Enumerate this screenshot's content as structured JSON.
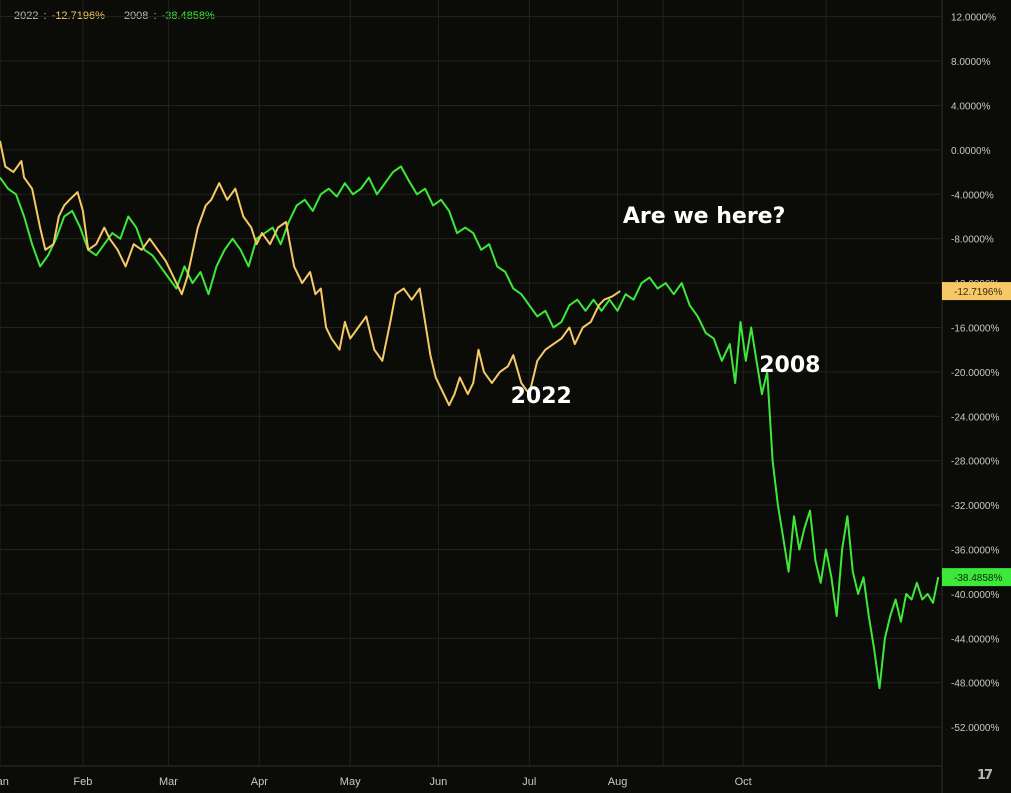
{
  "colors": {
    "background": "#0b0b08",
    "grid": "#22231d",
    "series_2022": "#f7c966",
    "series_2008": "#3de83a",
    "axis_text": "#c8c8c8",
    "annotation_text": "#ffffff"
  },
  "legend": {
    "s2022_name": "2022",
    "s2022_sep": " : ",
    "s2022_value": "-12.7196%",
    "s2008_name": "2008",
    "s2008_sep": " : ",
    "s2008_value": "-38.4858%"
  },
  "last_value_labels": {
    "s2022": "-12.7196%",
    "s2008": "-38.4858%"
  },
  "watermark_icon": "tradingview-logo-icon",
  "chart_data": {
    "type": "line",
    "title": "",
    "xlabel": "",
    "ylabel": "",
    "x_unit": "day of year",
    "xlim": [
      0,
      352
    ],
    "ylim": [
      -55.5,
      13.5
    ],
    "grid": true,
    "legend_position": "top-left",
    "y_ticks": [
      12,
      8,
      4,
      0,
      -4,
      -8,
      -12,
      -16,
      -20,
      -24,
      -28,
      -32,
      -36,
      -40,
      -44,
      -48,
      -52
    ],
    "y_tick_labels": [
      "12.0000%",
      "8.0000%",
      "4.0000%",
      "0.0000%",
      "-4.0000%",
      "-8.0000%",
      "-12.0000%",
      "-16.0000%",
      "-20.0000%",
      "-24.0000%",
      "-28.0000%",
      "-32.0000%",
      "-36.0000%",
      "-40.0000%",
      "-44.0000%",
      "-48.0000%",
      "-52.0000%"
    ],
    "x_ticks": [
      {
        "label": "Jan",
        "x": 0
      },
      {
        "label": "Feb",
        "x": 31
      },
      {
        "label": "Mar",
        "x": 63
      },
      {
        "label": "Apr",
        "x": 97
      },
      {
        "label": "May",
        "x": 131
      },
      {
        "label": "Jun",
        "x": 164
      },
      {
        "label": "Jul",
        "x": 198
      },
      {
        "label": "Aug",
        "x": 231
      },
      {
        "label": "Oct",
        "x": 278
      }
    ],
    "annotations": [
      {
        "text": "Are we here?",
        "x": 233,
        "y": -6.6
      },
      {
        "text": "2022",
        "x": 191,
        "y": -22.8
      },
      {
        "text": "2008",
        "x": 284,
        "y": -20.0
      }
    ],
    "series": [
      {
        "name": "2022",
        "color": "#f7c966",
        "x": [
          0,
          2,
          5,
          8,
          9,
          12,
          15,
          17,
          20,
          22,
          24,
          26,
          29,
          31,
          33,
          36,
          39,
          41,
          44,
          47,
          50,
          53,
          56,
          59,
          62,
          64,
          66,
          68,
          70,
          74,
          77,
          79,
          82,
          85,
          88,
          91,
          94,
          96,
          98,
          101,
          104,
          107,
          110,
          113,
          116,
          118,
          120,
          122,
          124,
          127,
          129,
          131,
          134,
          137,
          140,
          143,
          146,
          148,
          151,
          154,
          157,
          159,
          161,
          163,
          166,
          168,
          170,
          172,
          175,
          177,
          179,
          181,
          184,
          187,
          190,
          192,
          195,
          198,
          201,
          204,
          207,
          210,
          213,
          215,
          218,
          221,
          224,
          226,
          229,
          232
        ],
        "y": [
          0.8,
          -1.5,
          -2.0,
          -1.0,
          -2.5,
          -3.5,
          -7.0,
          -9.0,
          -8.5,
          -6.0,
          -5.0,
          -4.5,
          -3.8,
          -5.5,
          -9.0,
          -8.5,
          -7.0,
          -8.0,
          -9.0,
          -10.5,
          -8.5,
          -9.0,
          -8.0,
          -9.0,
          -10.0,
          -11.0,
          -12.0,
          -13.0,
          -11.5,
          -7.0,
          -5.0,
          -4.5,
          -3.0,
          -4.5,
          -3.5,
          -6.0,
          -7.0,
          -8.5,
          -7.5,
          -8.5,
          -7.0,
          -6.5,
          -10.5,
          -12.0,
          -11.0,
          -13.0,
          -12.5,
          -16.0,
          -17.0,
          -18.0,
          -15.5,
          -17.0,
          -16.0,
          -15.0,
          -18.0,
          -19.0,
          -15.5,
          -13.0,
          -12.5,
          -13.5,
          -12.5,
          -15.5,
          -18.5,
          -20.5,
          -22.0,
          -23.0,
          -22.0,
          -20.5,
          -22.0,
          -21.0,
          -18.0,
          -20.0,
          -21.0,
          -20.0,
          -19.5,
          -18.5,
          -21.0,
          -22.0,
          -19.0,
          -18.0,
          -17.5,
          -17.0,
          -16.0,
          -17.5,
          -16.0,
          -15.5,
          -14.0,
          -13.5,
          -13.2,
          -12.7196
        ]
      },
      {
        "name": "2008",
        "color": "#3de83a",
        "x": [
          0,
          3,
          6,
          9,
          12,
          15,
          18,
          21,
          24,
          27,
          30,
          33,
          36,
          39,
          42,
          45,
          48,
          51,
          54,
          57,
          60,
          63,
          66,
          69,
          72,
          75,
          78,
          81,
          84,
          87,
          90,
          93,
          96,
          99,
          102,
          105,
          108,
          111,
          114,
          117,
          120,
          123,
          126,
          129,
          132,
          135,
          138,
          141,
          144,
          147,
          150,
          153,
          156,
          159,
          162,
          165,
          168,
          171,
          174,
          177,
          180,
          183,
          186,
          189,
          192,
          195,
          198,
          201,
          204,
          207,
          210,
          213,
          216,
          219,
          222,
          225,
          228,
          231,
          234,
          237,
          240,
          243,
          246,
          249,
          252,
          255,
          258,
          261,
          264,
          267,
          270,
          273,
          275,
          277,
          279,
          281,
          283,
          285,
          287,
          289,
          291,
          293,
          295,
          297,
          299,
          301,
          303,
          305,
          307,
          309,
          311,
          313,
          315,
          317,
          319,
          321,
          323,
          325,
          327,
          329,
          331,
          333,
          335,
          337,
          339,
          341,
          343,
          345,
          347,
          349,
          351
        ],
        "y": [
          -2.5,
          -3.5,
          -4.0,
          -6.0,
          -8.5,
          -10.5,
          -9.5,
          -8.0,
          -6.0,
          -5.5,
          -7.0,
          -9.0,
          -9.5,
          -8.5,
          -7.5,
          -8.0,
          -6.0,
          -7.0,
          -9.0,
          -9.5,
          -10.5,
          -11.5,
          -12.5,
          -10.5,
          -12.0,
          -11.0,
          -13.0,
          -10.5,
          -9.0,
          -8.0,
          -9.0,
          -10.5,
          -8.0,
          -7.5,
          -7.0,
          -8.5,
          -6.5,
          -5.0,
          -4.5,
          -5.5,
          -4.0,
          -3.5,
          -4.2,
          -3.0,
          -4.0,
          -3.5,
          -2.5,
          -4.0,
          -3.0,
          -2.0,
          -1.5,
          -2.8,
          -4.0,
          -3.5,
          -5.0,
          -4.5,
          -5.5,
          -7.5,
          -7.0,
          -7.5,
          -9.0,
          -8.5,
          -10.5,
          -11.0,
          -12.5,
          -13.0,
          -14.0,
          -15.0,
          -14.5,
          -16.0,
          -15.5,
          -14.0,
          -13.5,
          -14.5,
          -13.5,
          -14.5,
          -13.5,
          -14.5,
          -13.0,
          -13.5,
          -12.0,
          -11.5,
          -12.5,
          -12.0,
          -13.0,
          -12.0,
          -14.0,
          -15.0,
          -16.5,
          -17.0,
          -19.0,
          -17.5,
          -21.0,
          -15.5,
          -19.0,
          -16.0,
          -19.0,
          -22.0,
          -20.0,
          -28.0,
          -32.0,
          -35.0,
          -38.0,
          -33.0,
          -36.0,
          -34.0,
          -32.5,
          -37.0,
          -39.0,
          -36.0,
          -38.5,
          -42.0,
          -36.0,
          -33.0,
          -38.0,
          -40.0,
          -38.5,
          -42.0,
          -45.0,
          -48.5,
          -44.0,
          -42.0,
          -40.5,
          -42.5,
          -40.0,
          -40.5,
          -39.0,
          -40.5,
          -40.0,
          -40.8,
          -38.4858
        ]
      }
    ]
  }
}
